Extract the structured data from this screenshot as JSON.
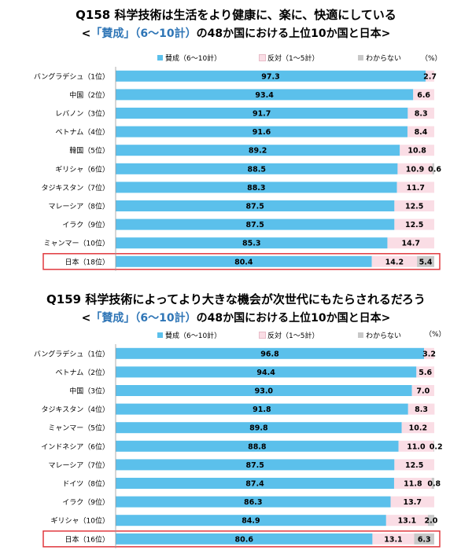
{
  "colors": {
    "agree": "#5bc0eb",
    "disagree": "#fadde5",
    "dontknow": "#c8c8c8",
    "highlight": "#e0393e",
    "title_accent": "#2e75b6"
  },
  "chart_data": [
    {
      "type": "bar",
      "stacked": true,
      "orientation": "horizontal",
      "title": "Q158 科学技術は生活をより健康に、楽に、快適にしている",
      "subtitle_parts": [
        "<",
        "「賛成」（6～10計）",
        "の48か国における上位10か国と日本>"
      ],
      "unit": "（%）",
      "xlim": [
        0,
        100
      ],
      "legend": [
        "賛成（6～10計）",
        "反対（1～5計）",
        "わからない"
      ],
      "categories": [
        "バングラデシュ（1位）",
        "中国（2位）",
        "レバノン（3位）",
        "ベトナム（4位）",
        "韓国（5位）",
        "ギリシャ（6位）",
        "タジキスタン（7位）",
        "マレーシア（8位）",
        "イラク（9位）",
        "ミャンマー（10位）",
        "日本（18位）"
      ],
      "series": [
        {
          "name": "賛成（6～10計）",
          "values": [
            97.3,
            93.4,
            91.7,
            91.6,
            89.2,
            88.5,
            88.3,
            87.5,
            87.5,
            85.3,
            80.4
          ]
        },
        {
          "name": "反対（1～5計）",
          "values": [
            2.7,
            6.6,
            8.3,
            8.4,
            10.8,
            10.9,
            11.7,
            12.5,
            12.5,
            14.7,
            14.2
          ]
        },
        {
          "name": "わからない",
          "values": [
            0,
            0,
            0,
            0,
            0,
            0.6,
            0,
            0,
            0,
            0,
            5.4
          ]
        }
      ],
      "highlighted_category": "日本（18位）"
    },
    {
      "type": "bar",
      "stacked": true,
      "orientation": "horizontal",
      "title": "Q159 科学技術によってより大きな機会が次世代にもたらされるだろう",
      "subtitle_parts": [
        "<",
        "「賛成」（6～10計）",
        "の48か国における上位10か国と日本>"
      ],
      "unit": "（%）",
      "xlim": [
        0,
        100
      ],
      "legend": [
        "賛成（6～10計）",
        "反対（1～5計）",
        "わからない"
      ],
      "categories": [
        "バングラデシュ（1位）",
        "ベトナム（2位）",
        "中国（3位）",
        "タジキスタン（4位）",
        "ミャンマー（5位）",
        "インドネシア（6位）",
        "マレーシア（7位）",
        "ドイツ（8位）",
        "イラク（9位）",
        "ギリシャ（10位）",
        "日本（16位）"
      ],
      "series": [
        {
          "name": "賛成（6～10計）",
          "values": [
            96.8,
            94.4,
            93.0,
            91.8,
            89.8,
            88.8,
            87.5,
            87.4,
            86.3,
            84.9,
            80.6
          ]
        },
        {
          "name": "反対（1～5計）",
          "values": [
            3.2,
            5.6,
            7.0,
            8.3,
            10.2,
            11.0,
            12.5,
            11.8,
            13.7,
            13.1,
            13.1
          ]
        },
        {
          "name": "わからない",
          "values": [
            0,
            0,
            0,
            0,
            0,
            0.2,
            0,
            0.8,
            0,
            2.0,
            6.3
          ]
        }
      ],
      "highlighted_category": "日本（16位）"
    }
  ]
}
